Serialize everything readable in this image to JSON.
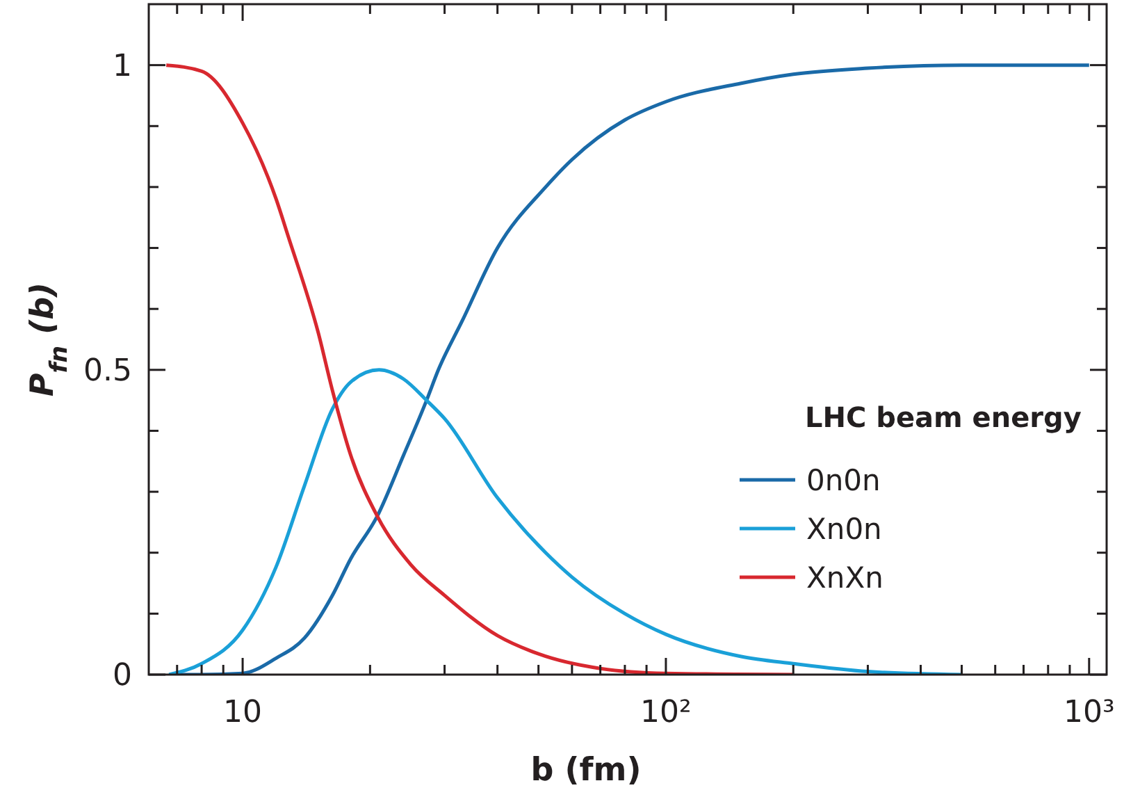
{
  "chart_data": {
    "type": "line",
    "xlabel": "b (fm)",
    "ylabel": "P$_{fn}$ (b)",
    "legend_title": "LHC beam energy",
    "legend": "right",
    "log": "x",
    "grid": false,
    "line_style": "solid",
    "xlim": [
      6,
      1100
    ],
    "ylim": [
      0,
      1.1
    ],
    "xticks": [
      {
        "value": 7,
        "label": null
      },
      {
        "value": 8,
        "label": null
      },
      {
        "value": 9,
        "label": null
      },
      {
        "value": 10,
        "label": "10"
      },
      {
        "value": 20,
        "label": null
      },
      {
        "value": 30,
        "label": null
      },
      {
        "value": 40,
        "label": null
      },
      {
        "value": 50,
        "label": null
      },
      {
        "value": 60,
        "label": null
      },
      {
        "value": 70,
        "label": null
      },
      {
        "value": 80,
        "label": null
      },
      {
        "value": 90,
        "label": null
      },
      {
        "value": 100,
        "label": "10²"
      },
      {
        "value": 200,
        "label": null
      },
      {
        "value": 300,
        "label": null
      },
      {
        "value": 400,
        "label": null
      },
      {
        "value": 500,
        "label": null
      },
      {
        "value": 600,
        "label": null
      },
      {
        "value": 700,
        "label": null
      },
      {
        "value": 800,
        "label": null
      },
      {
        "value": 900,
        "label": null
      },
      {
        "value": 1000,
        "label": "10³"
      }
    ],
    "yticks": [
      0,
      {
        "value": 0.1,
        "label": null
      },
      {
        "value": 0.2,
        "label": null
      },
      {
        "value": 0.3,
        "label": null
      },
      {
        "value": 0.4,
        "label": null
      },
      0.5,
      {
        "value": 0.6,
        "label": null
      },
      {
        "value": 0.7,
        "label": null
      },
      {
        "value": 0.8,
        "label": null
      },
      {
        "value": 0.9,
        "label": null
      },
      1
    ],
    "series": [
      {
        "name": "0n0n",
        "color": "#1a6aa8",
        "x": [
          7,
          8,
          10,
          12,
          14,
          16.3,
          18,
          20.8,
          24,
          27.2,
          29,
          33,
          40,
          52,
          60,
          80,
          100,
          150,
          200,
          300,
          500,
          1000
        ],
        "values": [
          0,
          0,
          0.002,
          0.027,
          0.06,
          0.13,
          0.19,
          0.26,
          0.36,
          0.45,
          0.5,
          0.58,
          0.7,
          0.8,
          0.845,
          0.91,
          0.94,
          0.97,
          0.985,
          0.995,
          1,
          1
        ]
      },
      {
        "name": "Xn0n",
        "color": "#1aa0d8",
        "x": [
          6.7,
          8,
          10,
          12,
          14,
          16.3,
          18,
          21,
          24,
          27.2,
          30,
          40,
          52,
          60,
          80,
          100,
          150,
          200,
          300,
          500
        ],
        "values": [
          0,
          0.018,
          0.073,
          0.177,
          0.31,
          0.436,
          0.48,
          0.5,
          0.485,
          0.45,
          0.42,
          0.29,
          0.2,
          0.16,
          0.1,
          0.066,
          0.03,
          0.018,
          0.005,
          0
        ]
      },
      {
        "name": "XnXn",
        "color": "#d8282f",
        "x": [
          6.6,
          8,
          10,
          12,
          12.8,
          15.1,
          16.3,
          18,
          20.8,
          25,
          30,
          40,
          50,
          70,
          100,
          200
        ],
        "values": [
          1,
          0.99,
          0.905,
          0.78,
          0.72,
          0.56,
          0.466,
          0.36,
          0.26,
          0.18,
          0.13,
          0.064,
          0.034,
          0.01,
          0.002,
          0
        ]
      }
    ]
  }
}
